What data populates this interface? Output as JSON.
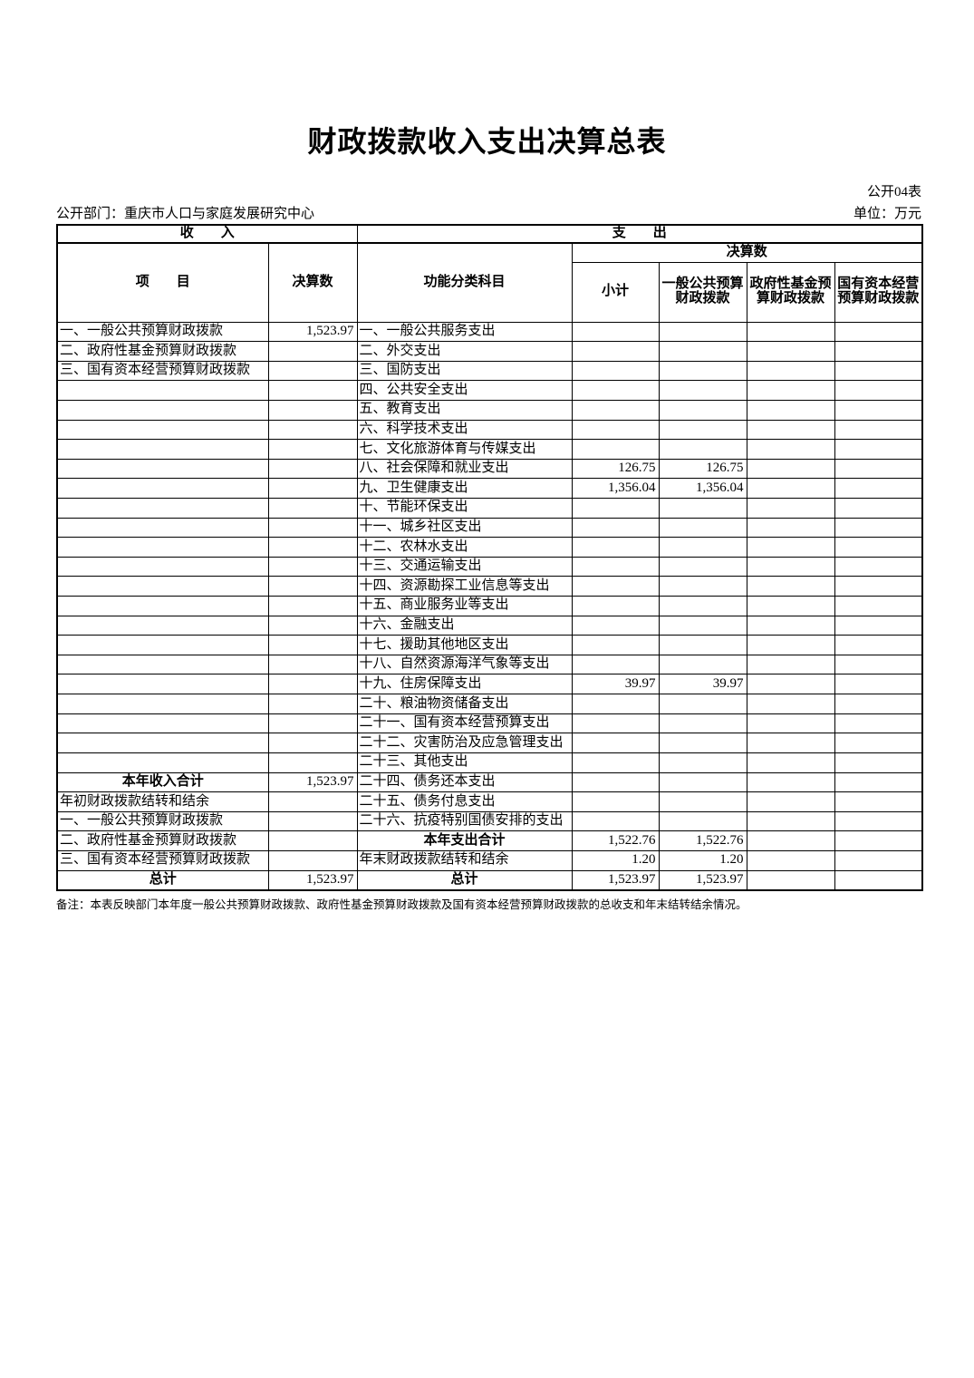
{
  "page": {
    "title": "财政拨款收入支出决算总表",
    "table_code": "公开04表",
    "department": "公开部门：重庆市人口与家庭发展研究中心",
    "unit": "单位：万元",
    "footnote": "备注：本表反映部门本年度一般公共预算财政拨款、政府性基金预算财政拨款及国有资本经营预算财政拨款的总收支和年末结转结余情况。"
  },
  "table": {
    "header": {
      "income_section": "收　　入",
      "expenditure_section": "支　　出",
      "item": "项　　目",
      "income_final": "决算数",
      "functional_category": "功能分类科目",
      "expenditure_final": "决算数",
      "subtotal": "小计",
      "general_public_budget": "一般公共预算财政拨款",
      "government_fund_budget": "政府性基金预算财政拨款",
      "state_capital_budget": "国有资本经营预算财政拨款"
    },
    "rows": [
      {
        "income": "一、一般公共预算财政拨款",
        "income_value": "1,523.97",
        "expense": "一、一般公共服务支出"
      },
      {
        "income": "二、政府性基金预算财政拨款",
        "expense": "二、外交支出"
      },
      {
        "income": "三、国有资本经营预算财政拨款",
        "expense": "三、国防支出"
      },
      {
        "expense": "四、公共安全支出"
      },
      {
        "expense": "五、教育支出"
      },
      {
        "expense": "六、科学技术支出"
      },
      {
        "expense": "七、文化旅游体育与传媒支出"
      },
      {
        "expense": "八、社会保障和就业支出",
        "subtotal": "126.75",
        "general": "126.75"
      },
      {
        "expense": "九、卫生健康支出",
        "subtotal": "1,356.04",
        "general": "1,356.04"
      },
      {
        "expense": "十、节能环保支出"
      },
      {
        "expense": "十一、城乡社区支出"
      },
      {
        "expense": "十二、农林水支出"
      },
      {
        "expense": "十三、交通运输支出"
      },
      {
        "expense": "十四、资源勘探工业信息等支出"
      },
      {
        "expense": "十五、商业服务业等支出"
      },
      {
        "expense": "十六、金融支出"
      },
      {
        "expense": "十七、援助其他地区支出"
      },
      {
        "expense": "十八、自然资源海洋气象等支出"
      },
      {
        "expense": "十九、住房保障支出",
        "subtotal": "39.97",
        "general": "39.97"
      },
      {
        "expense": "二十、粮油物资储备支出"
      },
      {
        "expense": "二十一、国有资本经营预算支出"
      },
      {
        "expense": "二十二、灾害防治及应急管理支出"
      },
      {
        "expense": "二十三、其他支出"
      },
      {
        "income": "本年收入合计",
        "income_style": "total",
        "income_value": "1,523.97",
        "expense": "二十四、债务还本支出"
      },
      {
        "income": "年初财政拨款结转和结余",
        "expense": "二十五、债务付息支出"
      },
      {
        "income": "一、一般公共预算财政拨款",
        "expense": "二十六、抗疫特别国债安排的支出"
      },
      {
        "income": "二、政府性基金预算财政拨款",
        "expense": "本年支出合计",
        "expense_style": "total",
        "subtotal": "1,522.76",
        "general": "1,522.76"
      },
      {
        "income": "三、国有资本经营预算财政拨款",
        "expense": "年末财政拨款结转和结余",
        "subtotal": "1.20",
        "general": "1.20"
      },
      {
        "income": "总计",
        "income_style": "total",
        "income_value": "1,523.97",
        "expense": "总计",
        "expense_style": "total",
        "subtotal": "1,523.97",
        "general": "1,523.97"
      }
    ]
  }
}
